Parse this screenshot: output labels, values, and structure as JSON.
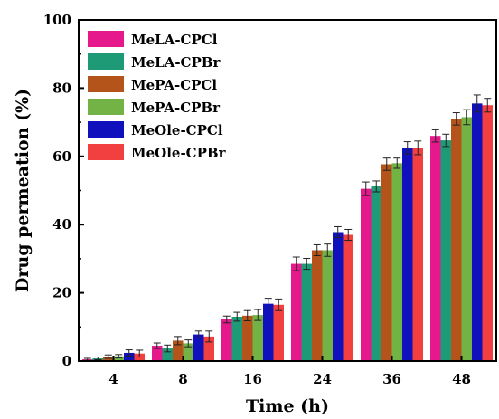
{
  "chart_data": {
    "type": "bar",
    "title": "",
    "xlabel": "Time (h)",
    "ylabel": "Drug permeation (%)",
    "ylim": [
      0,
      100
    ],
    "yticks": [
      0,
      20,
      40,
      60,
      80,
      100
    ],
    "categories": [
      "4",
      "8",
      "16",
      "24",
      "36",
      "48"
    ],
    "legend_position": "top-left",
    "grid": false,
    "error_bars": true,
    "series": [
      {
        "name": "MeLA-CPCl",
        "color": "#e6198c",
        "values": [
          0.5,
          4.5,
          12.2,
          28.5,
          50.5,
          66.0
        ],
        "errors": [
          0.3,
          0.8,
          1.0,
          2.0,
          2.0,
          1.8
        ]
      },
      {
        "name": "MeLA-CPBr",
        "color": "#1f9a76",
        "values": [
          0.8,
          3.7,
          13.0,
          28.5,
          51.2,
          64.7
        ],
        "errors": [
          0.4,
          1.0,
          1.3,
          1.6,
          1.6,
          1.8
        ]
      },
      {
        "name": "MePA-CPCl",
        "color": "#b4541a",
        "values": [
          1.3,
          6.0,
          13.3,
          32.5,
          57.7,
          71.0
        ],
        "errors": [
          0.5,
          1.2,
          1.5,
          1.6,
          1.8,
          1.8
        ]
      },
      {
        "name": "MePA-CPBr",
        "color": "#73b346",
        "values": [
          1.4,
          5.2,
          13.5,
          32.5,
          58.0,
          71.5
        ],
        "errors": [
          0.5,
          1.0,
          1.6,
          1.8,
          1.5,
          2.2
        ]
      },
      {
        "name": "MeOle-CPCl",
        "color": "#1010bc",
        "values": [
          2.4,
          7.8,
          16.8,
          37.8,
          62.5,
          75.5
        ],
        "errors": [
          0.9,
          1.0,
          1.6,
          1.6,
          1.8,
          2.5
        ]
      },
      {
        "name": "MeOle-CPBr",
        "color": "#f23f3f",
        "values": [
          2.2,
          7.2,
          16.5,
          37.0,
          62.5,
          75.0
        ],
        "errors": [
          1.0,
          1.6,
          1.7,
          1.6,
          2.0,
          2.0
        ]
      }
    ]
  }
}
